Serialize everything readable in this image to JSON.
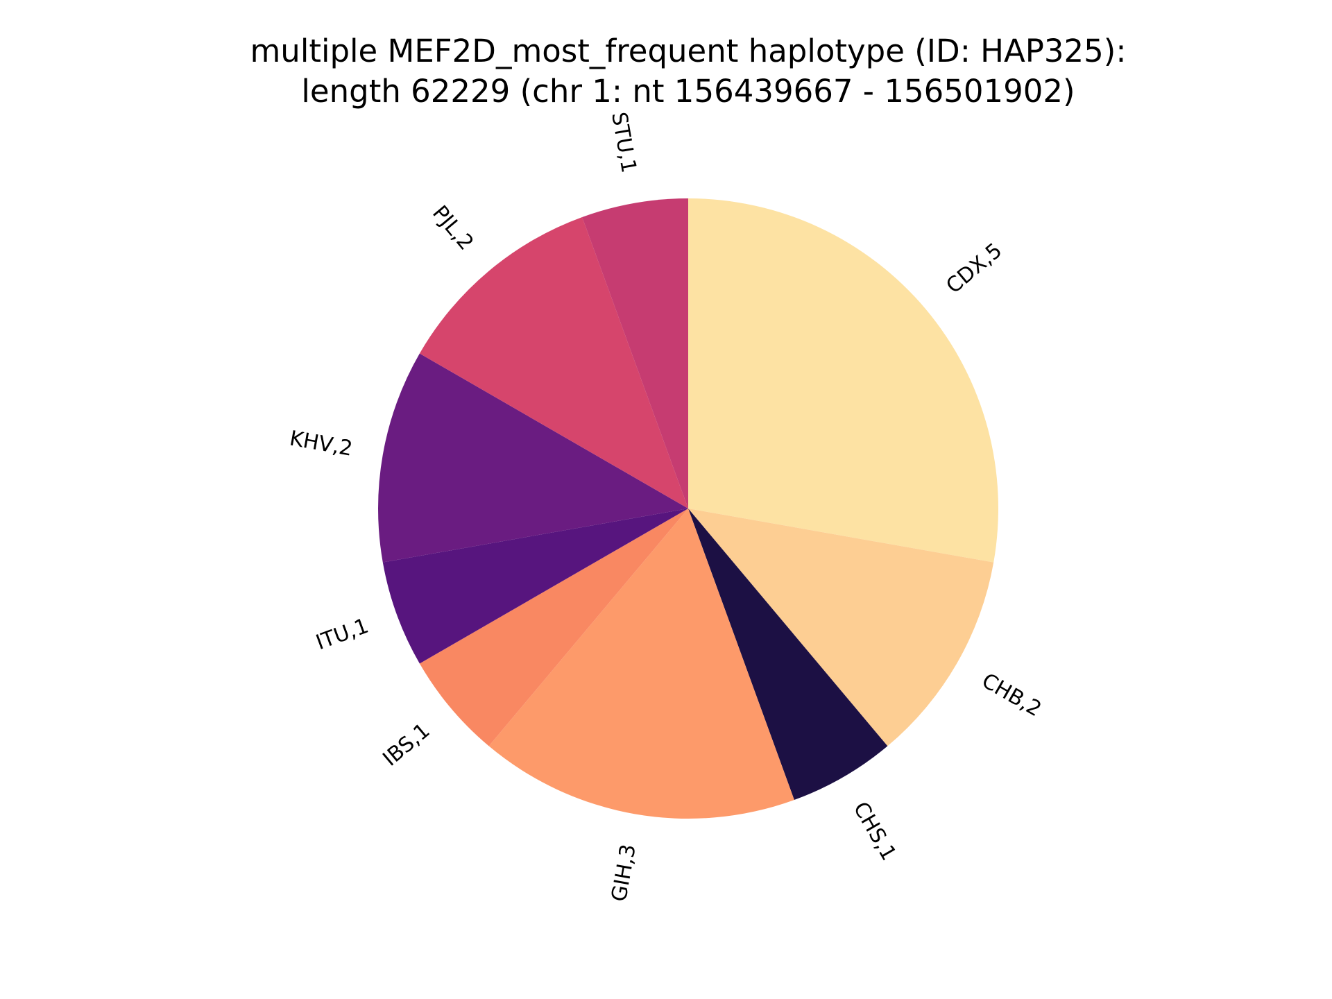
{
  "chart_data": {
    "type": "pie",
    "title_line1": "multiple MEF2D_most_frequent haplotype (ID: HAP325):",
    "title_line2": "length 62229 (chr 1: nt 156439667 - 156501902)",
    "start_angle_deg": 90,
    "direction": "clockwise",
    "slices": [
      {
        "label": "CDX,5",
        "value": 5,
        "color": "#fde2a3"
      },
      {
        "label": "CHB,2",
        "value": 2,
        "color": "#fdce93"
      },
      {
        "label": "CHS,1",
        "value": 1,
        "color": "#1c1044"
      },
      {
        "label": "GIH,3",
        "value": 3,
        "color": "#fd9a6a"
      },
      {
        "label": "IBS,1",
        "value": 1,
        "color": "#f98862"
      },
      {
        "label": "ITU,1",
        "value": 1,
        "color": "#57157e"
      },
      {
        "label": "KHV,2",
        "value": 2,
        "color": "#6a1c81"
      },
      {
        "label": "PJL,2",
        "value": 2,
        "color": "#d6456c"
      },
      {
        "label": "STU,1",
        "value": 1,
        "color": "#c63c71"
      }
    ]
  }
}
